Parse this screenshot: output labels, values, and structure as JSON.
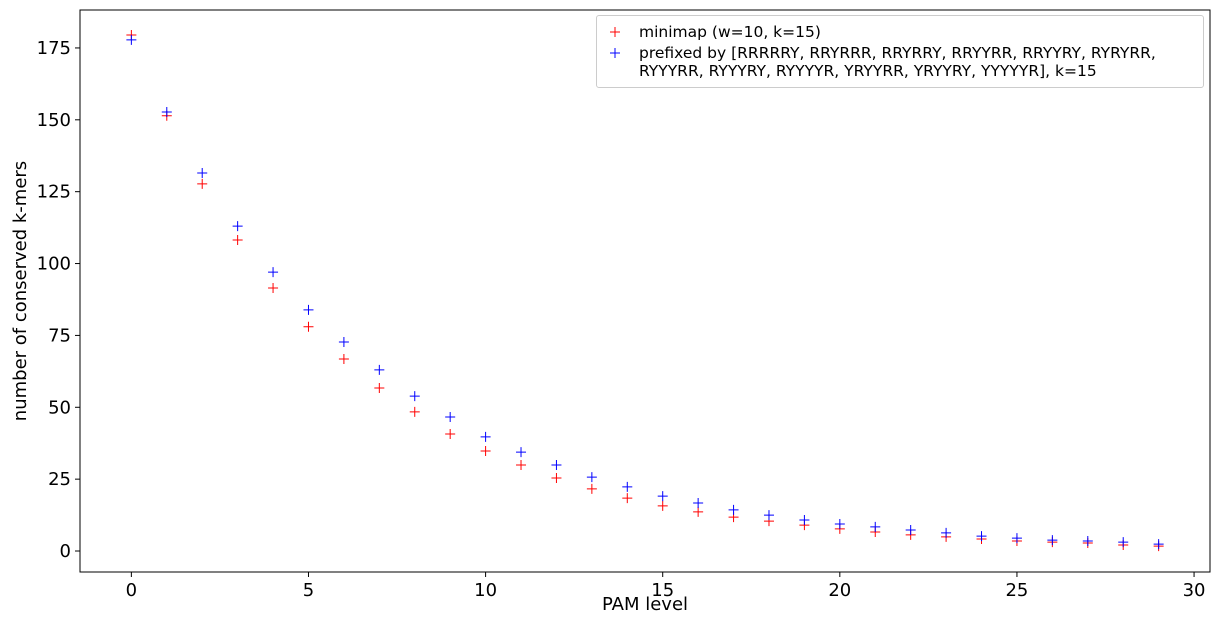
{
  "chart_data": {
    "type": "scatter",
    "xlabel": "PAM level",
    "ylabel": "number of conserved k-mers",
    "xlim": [
      -1.45,
      30.45
    ],
    "ylim": [
      -7.3,
      188.2
    ],
    "xticks": [
      0,
      5,
      10,
      15,
      20,
      25,
      30
    ],
    "yticks": [
      0,
      25,
      50,
      75,
      100,
      125,
      150,
      175
    ],
    "legend": "upper right",
    "x": [
      0,
      1,
      2,
      3,
      4,
      5,
      6,
      7,
      8,
      9,
      10,
      11,
      12,
      13,
      14,
      15,
      16,
      17,
      18,
      19,
      20,
      21,
      22,
      23,
      24,
      25,
      26,
      27,
      28,
      29
    ],
    "series": [
      {
        "name": "minimap (w=10, k=15)",
        "color": "#ff0000",
        "marker": "+",
        "values": [
          179.5,
          151.4,
          127.7,
          108.2,
          91.5,
          78,
          66.8,
          56.7,
          48.4,
          40.7,
          34.8,
          29.9,
          25.4,
          21.6,
          18.4,
          15.7,
          13.6,
          11.8,
          10.4,
          9,
          7.7,
          6.6,
          5.6,
          4.9,
          4.2,
          3.5,
          3.1,
          2.8,
          2.1,
          1.7
        ]
      },
      {
        "name": "prefixed by [RRRRRY, RRYRRR, RRYRRY, RRYYRR, RRYYRY, RYRYRR, RYYYRR, RYYYRY, RYYYYR, YRYYRR, YRYYRY, YYYYYR], k=15",
        "color": "#0000ff",
        "marker": "+",
        "values": [
          177.8,
          152.7,
          131.5,
          113,
          97,
          83.9,
          72.7,
          63,
          53.9,
          46.6,
          39.7,
          34.4,
          29.9,
          25.7,
          22.3,
          19.1,
          16.7,
          14.3,
          12.5,
          10.8,
          9.4,
          8.4,
          7.3,
          6.3,
          5.2,
          4.5,
          3.8,
          3.5,
          3.1,
          2.4
        ]
      }
    ]
  }
}
